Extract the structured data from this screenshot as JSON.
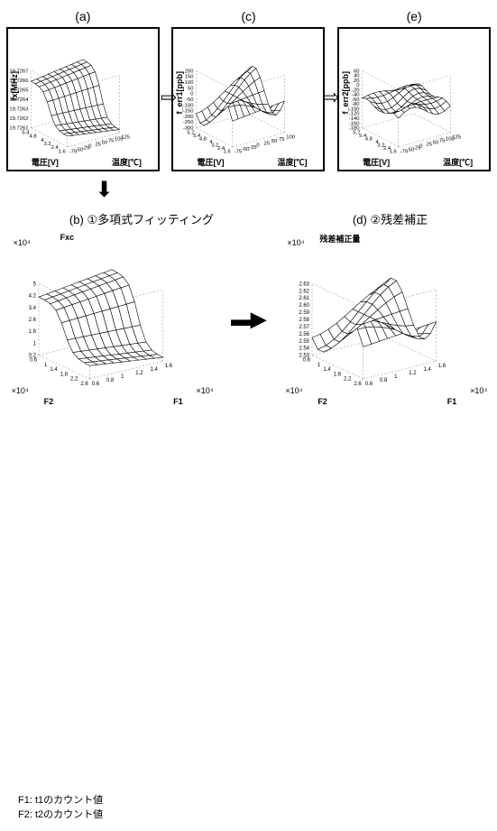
{
  "panels": {
    "a": {
      "label": "(a)",
      "ylabel": "fx[MHz]",
      "xl": "電圧[V]",
      "xr": "温度[℃]",
      "zticks": [
        "19.7267",
        "19.7266",
        "19.7265",
        "19.7264",
        "19.7263",
        "19.7262",
        "19.7261"
      ],
      "xticks": [
        "1.6",
        "2.4",
        "3.2",
        "4",
        "4.8",
        "5.4"
      ],
      "yticks": [
        "-75",
        "-50",
        "-25",
        "0",
        "25",
        "50",
        "75",
        "100",
        "125"
      ],
      "surface_shape": "saddle_high",
      "grid_color": "#000",
      "bg": "#fff"
    },
    "b": {
      "label": "(b)",
      "caption": "①多項式フィッティング",
      "ylabel": "Fxc",
      "xl": "F2",
      "xr": "F1",
      "zticks": [
        "5",
        "4.2",
        "3.4",
        "2.6",
        "1.8",
        "1",
        "0.2"
      ],
      "xticks": [
        "2.6",
        "2.2",
        "1.8",
        "1.4",
        "1",
        "0.6"
      ],
      "yticks": [
        "0.6",
        "0.8",
        "1",
        "1.2",
        "1.4",
        "1.6"
      ],
      "zexp": "×10⁴",
      "xexp": "×10⁴",
      "yexp": "×10⁴",
      "surface_shape": "saddle_high",
      "grid_color": "#000",
      "bg": "#fff"
    },
    "c": {
      "label": "(c)",
      "ylabel": "f_err1[ppb]",
      "xl": "電圧[V]",
      "xr": "温度[℃]",
      "zticks": [
        "200",
        "150",
        "100",
        "50",
        "0",
        "-50",
        "-100",
        "-150",
        "-200",
        "-250",
        "-300"
      ],
      "xticks": [
        "1.6",
        "2.4",
        "3.2",
        "4",
        "4.8",
        "5.4",
        "5.7"
      ],
      "yticks": [
        "-75",
        "-50",
        "-25",
        "0",
        "25",
        "50",
        "75",
        "100"
      ],
      "surface_shape": "wave_mid",
      "grid_color": "#000",
      "bg": "#fff"
    },
    "d": {
      "label": "(d)",
      "caption": "②残差補正",
      "ylabel": "残差補正量",
      "xl": "F2",
      "xr": "F1",
      "zticks": [
        "2.63",
        "2.62",
        "2.61",
        "2.60",
        "2.59",
        "2.58",
        "2.57",
        "2.56",
        "2.55",
        "2.54",
        "2.53"
      ],
      "xticks": [
        "2.6",
        "2.2",
        "1.8",
        "1.4",
        "1",
        "0.6"
      ],
      "yticks": [
        "0.6",
        "0.8",
        "1",
        "1.2",
        "1.4",
        "1.6"
      ],
      "zexp": "×10⁴",
      "xexp": "×10⁴",
      "yexp": "×10⁴",
      "surface_shape": "wave_mid",
      "grid_color": "#000",
      "bg": "#fff"
    },
    "e": {
      "label": "(e)",
      "ylabel": "f_err2[ppb]",
      "xl": "電圧[V]",
      "xr": "温度[℃]",
      "zticks": [
        "60",
        "40",
        "20",
        "0",
        "-20",
        "-40",
        "-60",
        "-80",
        "-100",
        "-120",
        "-140",
        "-160",
        "-180"
      ],
      "xticks": [
        "1.6",
        "2.4",
        "3.2",
        "4",
        "4.8",
        "5.4",
        "5.7"
      ],
      "yticks": [
        "-75",
        "-50",
        "-25",
        "0",
        "25",
        "50",
        "75",
        "100",
        "125"
      ],
      "surface_shape": "ripple_low",
      "grid_color": "#000",
      "bg": "#fff"
    }
  },
  "footnote": {
    "line1": "F1: t1のカウント値",
    "line2": "F2: t2のカウント値"
  },
  "arrows": {
    "down": "⬇",
    "right_block": "▮▶",
    "outline_down": "⇩"
  }
}
